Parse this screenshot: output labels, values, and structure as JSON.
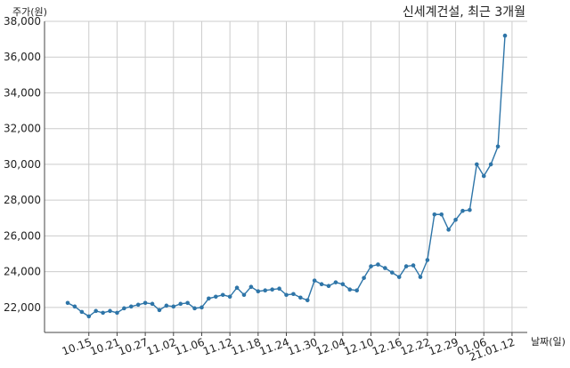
{
  "chart_data": {
    "type": "line",
    "title": "신세계건설, 최근 3개월",
    "ylabel": "주가(원)",
    "xlabel": "날짜(일)",
    "ylim": [
      20600,
      38000
    ],
    "yticks": [
      22000,
      24000,
      26000,
      28000,
      30000,
      32000,
      34000,
      36000,
      38000
    ],
    "ytick_labels": [
      "22,000",
      "24,000",
      "26,000",
      "28,000",
      "30,000",
      "32,000",
      "34,000",
      "36,000",
      "38,000"
    ],
    "xtick_labels": [
      "10.15",
      "10.21",
      "10.27",
      "11.02",
      "11.06",
      "11.12",
      "11.18",
      "11.24",
      "11.30",
      "12.04",
      "12.10",
      "12.16",
      "12.22",
      "12.29",
      "01.06",
      "21.01.12"
    ],
    "xtick_index": [
      3,
      7,
      11,
      15,
      19,
      23,
      27,
      31,
      35,
      39,
      43,
      47,
      51,
      55,
      59,
      63
    ],
    "grid": true,
    "line_color": "#2e75a8",
    "series": [
      {
        "values": [
          22250,
          22050,
          21750,
          21500,
          21800,
          21700,
          21800,
          21700,
          21950,
          22050,
          22150,
          22250,
          22200,
          21850,
          22100,
          22050,
          22200,
          22250,
          21950,
          22000,
          22500,
          22600,
          22700,
          22600,
          23100,
          22700,
          23150,
          22900,
          22950,
          23000,
          23050,
          22700,
          22750,
          22550,
          22400,
          23500,
          23300,
          23200,
          23400,
          23300,
          23000,
          22950,
          23650,
          24300,
          24400,
          24200,
          23950,
          23700,
          24300,
          24350,
          23700,
          24650,
          27200,
          27200,
          26350,
          26900,
          27400,
          27450,
          30000,
          29350,
          30000,
          31000,
          37200
        ]
      }
    ]
  }
}
